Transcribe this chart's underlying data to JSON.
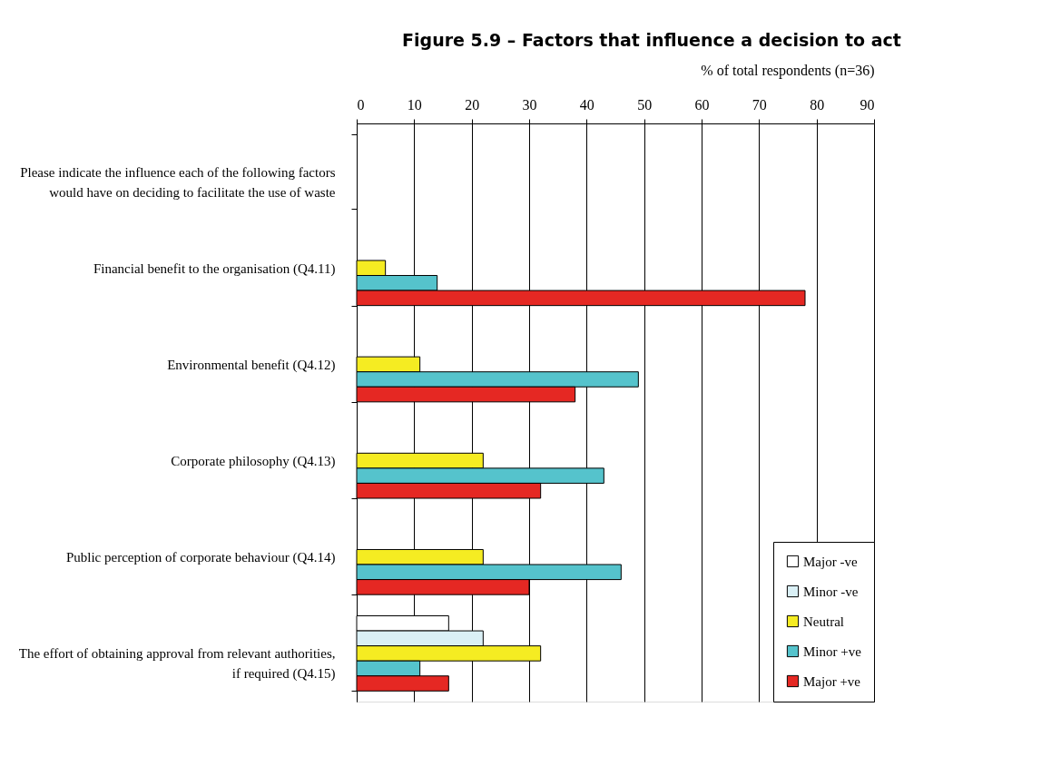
{
  "chart_data": {
    "type": "bar",
    "orientation": "horizontal",
    "title": "Figure 5.9 – Factors that influence a decision to act",
    "xlabel": "% of total respondents (n=36)",
    "categories": [
      "Please indicate the influence each of the following factors would have on deciding to facilitate the use of waste",
      "Financial benefit to the organisation (Q4.11)",
      "Environmental benefit (Q4.12)",
      "Corporate philosophy (Q4.13)",
      "Public perception of corporate behaviour (Q4.14)",
      "The effort of obtaining approval from relevant authorities, if required (Q4.15)"
    ],
    "series": [
      {
        "name": "Major -ve",
        "color": "#ffffff",
        "values": [
          null,
          null,
          null,
          null,
          null,
          16
        ]
      },
      {
        "name": "Minor -ve",
        "color": "#daf0f6",
        "values": [
          null,
          null,
          null,
          null,
          null,
          22
        ]
      },
      {
        "name": "Neutral",
        "color": "#f5ec22",
        "values": [
          null,
          5,
          11,
          22,
          22,
          32
        ]
      },
      {
        "name": "Minor +ve",
        "color": "#55c3cc",
        "values": [
          null,
          14,
          49,
          43,
          46,
          11
        ]
      },
      {
        "name": "Major +ve",
        "color": "#e52823",
        "values": [
          null,
          78,
          38,
          32,
          30,
          16
        ]
      }
    ],
    "xlim": [
      0,
      90
    ],
    "xticks": [
      0,
      10,
      20,
      30,
      40,
      50,
      60,
      70,
      80,
      90
    ],
    "grid": "x",
    "legend": "bottom right"
  }
}
